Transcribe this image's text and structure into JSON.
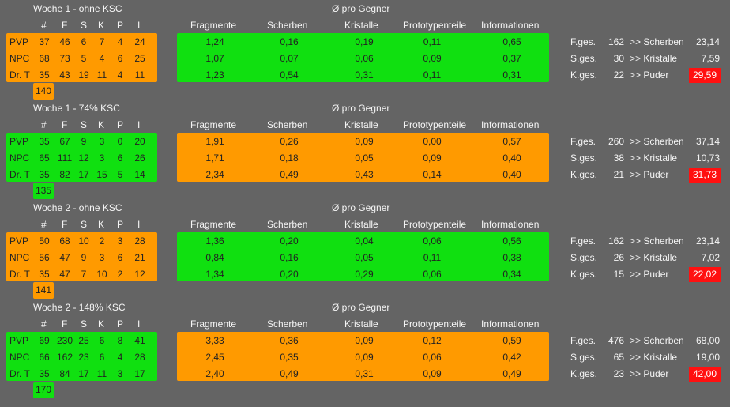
{
  "headers": {
    "count": [
      "#",
      "F",
      "S",
      "K",
      "P",
      "I"
    ],
    "avg_title": "Ø pro Gegner",
    "avg": [
      "Fragmente",
      "Scherben",
      "Kristalle",
      "Prototypenteile",
      "Informationen"
    ]
  },
  "sections": [
    {
      "title": "Woche 1 - ohne KSC",
      "left_color": "#ff9a00",
      "right_color": "#10e010",
      "total_color": "#ff9a00",
      "rows": [
        {
          "label": "PVP",
          "vals": [
            "37",
            "46",
            "6",
            "7",
            "4",
            "24"
          ],
          "avg": [
            "1,24",
            "0,16",
            "0,19",
            "0,11",
            "0,65"
          ]
        },
        {
          "label": "NPC",
          "vals": [
            "68",
            "73",
            "5",
            "4",
            "6",
            "25"
          ],
          "avg": [
            "1,07",
            "0,07",
            "0,06",
            "0,09",
            "0,37"
          ]
        },
        {
          "label": "Dr. T",
          "vals": [
            "35",
            "43",
            "19",
            "11",
            "4",
            "11"
          ],
          "avg": [
            "1,23",
            "0,54",
            "0,31",
            "0,11",
            "0,31"
          ]
        }
      ],
      "total": "140",
      "stats": [
        {
          "label": "F.ges.",
          "value": "162",
          "arrow": ">> Scherben",
          "result": "23,14"
        },
        {
          "label": "S.ges.",
          "value": "30",
          "arrow": ">> Kristalle",
          "result": "7,59"
        },
        {
          "label": "K.ges.",
          "value": "22",
          "arrow": ">> Puder",
          "result": "29,59"
        }
      ]
    },
    {
      "title": "Woche 1 - 74% KSC",
      "left_color": "#10e010",
      "right_color": "#ff9a00",
      "total_color": "#10e010",
      "rows": [
        {
          "label": "PVP",
          "vals": [
            "35",
            "67",
            "9",
            "3",
            "0",
            "20"
          ],
          "avg": [
            "1,91",
            "0,26",
            "0,09",
            "0,00",
            "0,57"
          ]
        },
        {
          "label": "NPC",
          "vals": [
            "65",
            "111",
            "12",
            "3",
            "6",
            "26"
          ],
          "avg": [
            "1,71",
            "0,18",
            "0,05",
            "0,09",
            "0,40"
          ]
        },
        {
          "label": "Dr. T",
          "vals": [
            "35",
            "82",
            "17",
            "15",
            "5",
            "14"
          ],
          "avg": [
            "2,34",
            "0,49",
            "0,43",
            "0,14",
            "0,40"
          ]
        }
      ],
      "total": "135",
      "stats": [
        {
          "label": "F.ges.",
          "value": "260",
          "arrow": ">> Scherben",
          "result": "37,14"
        },
        {
          "label": "S.ges.",
          "value": "38",
          "arrow": ">> Kristalle",
          "result": "10,73"
        },
        {
          "label": "K.ges.",
          "value": "21",
          "arrow": ">> Puder",
          "result": "31,73"
        }
      ]
    },
    {
      "title": "Woche 2 - ohne KSC",
      "left_color": "#ff9a00",
      "right_color": "#10e010",
      "total_color": "#ff9a00",
      "rows": [
        {
          "label": "PVP",
          "vals": [
            "50",
            "68",
            "10",
            "2",
            "3",
            "28"
          ],
          "avg": [
            "1,36",
            "0,20",
            "0,04",
            "0,06",
            "0,56"
          ]
        },
        {
          "label": "NPC",
          "vals": [
            "56",
            "47",
            "9",
            "3",
            "6",
            "21"
          ],
          "avg": [
            "0,84",
            "0,16",
            "0,05",
            "0,11",
            "0,38"
          ]
        },
        {
          "label": "Dr. T",
          "vals": [
            "35",
            "47",
            "7",
            "10",
            "2",
            "12"
          ],
          "avg": [
            "1,34",
            "0,20",
            "0,29",
            "0,06",
            "0,34"
          ]
        }
      ],
      "total": "141",
      "stats": [
        {
          "label": "F.ges.",
          "value": "162",
          "arrow": ">> Scherben",
          "result": "23,14"
        },
        {
          "label": "S.ges.",
          "value": "26",
          "arrow": ">> Kristalle",
          "result": "7,02"
        },
        {
          "label": "K.ges.",
          "value": "15",
          "arrow": ">> Puder",
          "result": "22,02"
        }
      ]
    },
    {
      "title": "Woche 2 - 148% KSC",
      "left_color": "#10e010",
      "right_color": "#ff9a00",
      "total_color": "#10e010",
      "rows": [
        {
          "label": "PVP",
          "vals": [
            "69",
            "230",
            "25",
            "6",
            "8",
            "41"
          ],
          "avg": [
            "3,33",
            "0,36",
            "0,09",
            "0,12",
            "0,59"
          ]
        },
        {
          "label": "NPC",
          "vals": [
            "66",
            "162",
            "23",
            "6",
            "4",
            "28"
          ],
          "avg": [
            "2,45",
            "0,35",
            "0,09",
            "0,06",
            "0,42"
          ]
        },
        {
          "label": "Dr. T",
          "vals": [
            "35",
            "84",
            "17",
            "11",
            "3",
            "17"
          ],
          "avg": [
            "2,40",
            "0,49",
            "0,31",
            "0,09",
            "0,49"
          ]
        }
      ],
      "total": "170",
      "stats": [
        {
          "label": "F.ges.",
          "value": "476",
          "arrow": ">> Scherben",
          "result": "68,00"
        },
        {
          "label": "S.ges.",
          "value": "65",
          "arrow": ">> Kristalle",
          "result": "19,00"
        },
        {
          "label": "K.ges.",
          "value": "23",
          "arrow": ">> Puder",
          "result": "42,00"
        }
      ]
    }
  ]
}
